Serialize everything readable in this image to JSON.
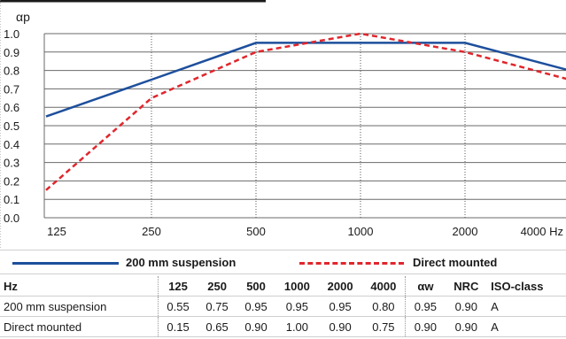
{
  "chart_data": {
    "type": "line",
    "ylabel": "αp",
    "ylim": [
      0.0,
      1.0
    ],
    "yticks": [
      "0.0",
      "0.1",
      "0.2",
      "0.3",
      "0.4",
      "0.5",
      "0.6",
      "0.7",
      "0.8",
      "0.9",
      "1.0"
    ],
    "categories": [
      "125",
      "250",
      "500",
      "1000",
      "2000",
      "4000 Hz"
    ],
    "series": [
      {
        "name": "200 mm suspension",
        "style": "solid",
        "color": "#1d4f9c",
        "values": [
          0.55,
          0.75,
          0.95,
          0.95,
          0.95,
          0.8
        ]
      },
      {
        "name": "Direct mounted",
        "style": "dashed",
        "color": "#e0262c",
        "values": [
          0.15,
          0.65,
          0.9,
          1.0,
          0.9,
          0.75
        ]
      }
    ],
    "grid": true
  },
  "legend": {
    "item1": "200 mm suspension",
    "item2": "Direct mounted"
  },
  "table": {
    "headers": {
      "hz": "Hz",
      "f1": "125",
      "f2": "250",
      "f3": "500",
      "f4": "1000",
      "f5": "2000",
      "f6": "4000",
      "aw": "αw",
      "nrc": "NRC",
      "iso": "ISO-class"
    },
    "rows": [
      {
        "label": "200 mm suspension",
        "v1": "0.55",
        "v2": "0.75",
        "v3": "0.95",
        "v4": "0.95",
        "v5": "0.95",
        "v6": "0.80",
        "aw": "0.95",
        "nrc": "0.90",
        "iso": "A"
      },
      {
        "label": "Direct mounted",
        "v1": "0.15",
        "v2": "0.65",
        "v3": "0.90",
        "v4": "1.00",
        "v5": "0.90",
        "v6": "0.75",
        "aw": "0.90",
        "nrc": "0.90",
        "iso": "A"
      }
    ]
  }
}
